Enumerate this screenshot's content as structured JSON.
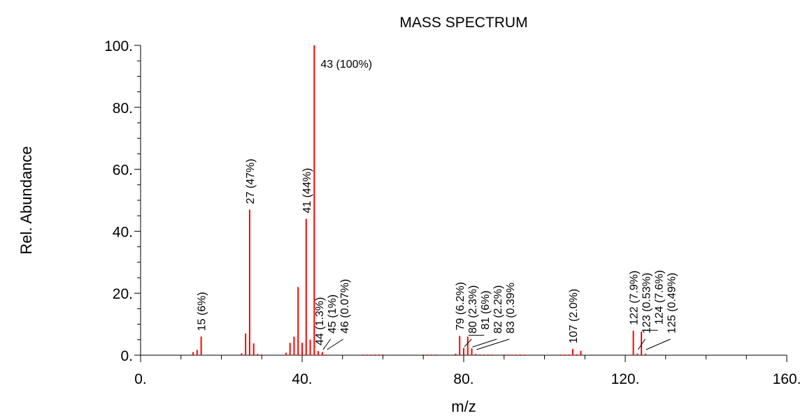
{
  "chart_data": {
    "type": "bar",
    "title": "MASS SPECTRUM",
    "xlabel": "m/z",
    "ylabel": "Rel. Abundance",
    "xlim": [
      0,
      160
    ],
    "ylim": [
      0,
      100
    ],
    "x_tick_labels": [
      "0.",
      "40.",
      "80.",
      "120.",
      "160."
    ],
    "y_tick_labels": [
      "0.",
      "20.",
      "40.",
      "60.",
      "80.",
      "100."
    ],
    "bar_color": "#ff0000",
    "grid": false,
    "series": [
      {
        "x": [
          13,
          14,
          15,
          25,
          26,
          27,
          28,
          29,
          30,
          36,
          37,
          38,
          39,
          40,
          41,
          42,
          43,
          44,
          45,
          46,
          55,
          56,
          57,
          58,
          59,
          60,
          70,
          71,
          72,
          73,
          78,
          79,
          80,
          81,
          82,
          83,
          84,
          85,
          86,
          87,
          90,
          91,
          92,
          93,
          94,
          95,
          104,
          105,
          106,
          107,
          108,
          109,
          122,
          123,
          124,
          125
        ],
        "values": [
          1.0,
          1.7,
          6.0,
          0.6,
          7.0,
          47.0,
          3.8,
          0.4,
          0.2,
          0.8,
          4.0,
          6.0,
          22.0,
          4.0,
          44.0,
          5.0,
          100.0,
          1.3,
          1.0,
          0.07,
          0.05,
          0.05,
          0.1,
          0.05,
          0.05,
          0.05,
          0.05,
          0.05,
          0.05,
          0.05,
          0.5,
          6.2,
          2.3,
          6.0,
          2.2,
          0.39,
          0.1,
          0.1,
          0.1,
          0.1,
          0.05,
          0.1,
          0.1,
          0.1,
          0.05,
          0.1,
          0.1,
          0.2,
          0.1,
          2.0,
          0.3,
          1.4,
          7.9,
          0.53,
          7.6,
          0.49
        ]
      }
    ],
    "annotations": [
      {
        "text": "15 (6%)",
        "x": 15,
        "y": 6.0
      },
      {
        "text": "27 (47%)",
        "x": 27,
        "y": 47.0
      },
      {
        "text": "41 (44%)",
        "x": 41,
        "y": 44.0
      },
      {
        "text": "43 (100%)",
        "x": 43,
        "y": 100.0
      },
      {
        "text": "44 (1.3%)",
        "x": 44,
        "y": 1.3
      },
      {
        "text": "45 (1%)",
        "x": 45,
        "y": 1.0
      },
      {
        "text": "46 (0.07%)",
        "x": 46,
        "y": 0.07
      },
      {
        "text": "79 (6.2%)",
        "x": 79,
        "y": 6.2
      },
      {
        "text": "80 (2.3%)",
        "x": 80,
        "y": 2.3
      },
      {
        "text": "81 (6%)",
        "x": 81,
        "y": 6.0
      },
      {
        "text": "82 (2.2%)",
        "x": 82,
        "y": 2.2
      },
      {
        "text": "83 (0.39%",
        "x": 83,
        "y": 0.39
      },
      {
        "text": "107 (2.0%)",
        "x": 107,
        "y": 2.0
      },
      {
        "text": "122 (7.9%)",
        "x": 122,
        "y": 7.9
      },
      {
        "text": "123 (0.53%)",
        "x": 123,
        "y": 0.53
      },
      {
        "text": "124 (7.6%)",
        "x": 124,
        "y": 7.6
      },
      {
        "text": "125 (0.49%)",
        "x": 125,
        "y": 0.49
      }
    ]
  }
}
